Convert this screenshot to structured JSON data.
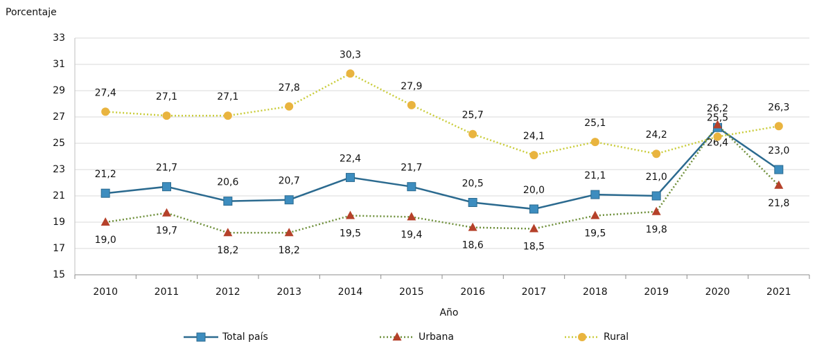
{
  "chart_data": {
    "type": "line",
    "y_label": "Porcentaje",
    "x_label": "Año",
    "categories": [
      "2010",
      "2011",
      "2012",
      "2013",
      "2014",
      "2015",
      "2016",
      "2017",
      "2018",
      "2019",
      "2020",
      "2021"
    ],
    "ylim": [
      15,
      33
    ],
    "yticks": [
      15,
      17,
      19,
      21,
      23,
      25,
      27,
      29,
      31,
      33
    ],
    "grid": true,
    "legend": "bottom",
    "series": [
      {
        "name": "Total país",
        "color": "#2b6a8f",
        "marker": "square",
        "marker_color": "#3d8dbf",
        "line_style": "solid",
        "label_position": "above",
        "values": [
          21.2,
          21.7,
          20.6,
          20.7,
          22.4,
          21.7,
          20.5,
          20.0,
          21.1,
          21.0,
          26.2,
          23.0
        ],
        "value_labels": [
          "21,2",
          "21,7",
          "20,6",
          "20,7",
          "22,4",
          "21,7",
          "20,5",
          "20,0",
          "21,1",
          "21,0",
          "26,2",
          "23,0"
        ]
      },
      {
        "name": "Urbana",
        "color": "#6e8f3a",
        "marker": "triangle",
        "marker_color": "#b5412a",
        "line_style": "dotted",
        "label_position": "below",
        "values": [
          19.0,
          19.7,
          18.2,
          18.2,
          19.5,
          19.4,
          18.6,
          18.5,
          19.5,
          19.8,
          26.4,
          21.8
        ],
        "value_labels": [
          "19,0",
          "19,7",
          "18,2",
          "18,2",
          "19,5",
          "19,4",
          "18,6",
          "18,5",
          "19,5",
          "19,8",
          "26,4",
          "21,8"
        ]
      },
      {
        "name": "Rural",
        "color": "#c9cc3a",
        "marker": "circle",
        "marker_color": "#e9b43f",
        "line_style": "dotted",
        "label_position": "above",
        "values": [
          27.4,
          27.1,
          27.1,
          27.8,
          30.3,
          27.9,
          25.7,
          24.1,
          25.1,
          24.2,
          25.5,
          26.3
        ],
        "value_labels": [
          "27,4",
          "27,1",
          "27,1",
          "27,8",
          "30,3",
          "27,9",
          "25,7",
          "24,1",
          "25,1",
          "24,2",
          "25,5",
          "26,3"
        ]
      }
    ]
  }
}
